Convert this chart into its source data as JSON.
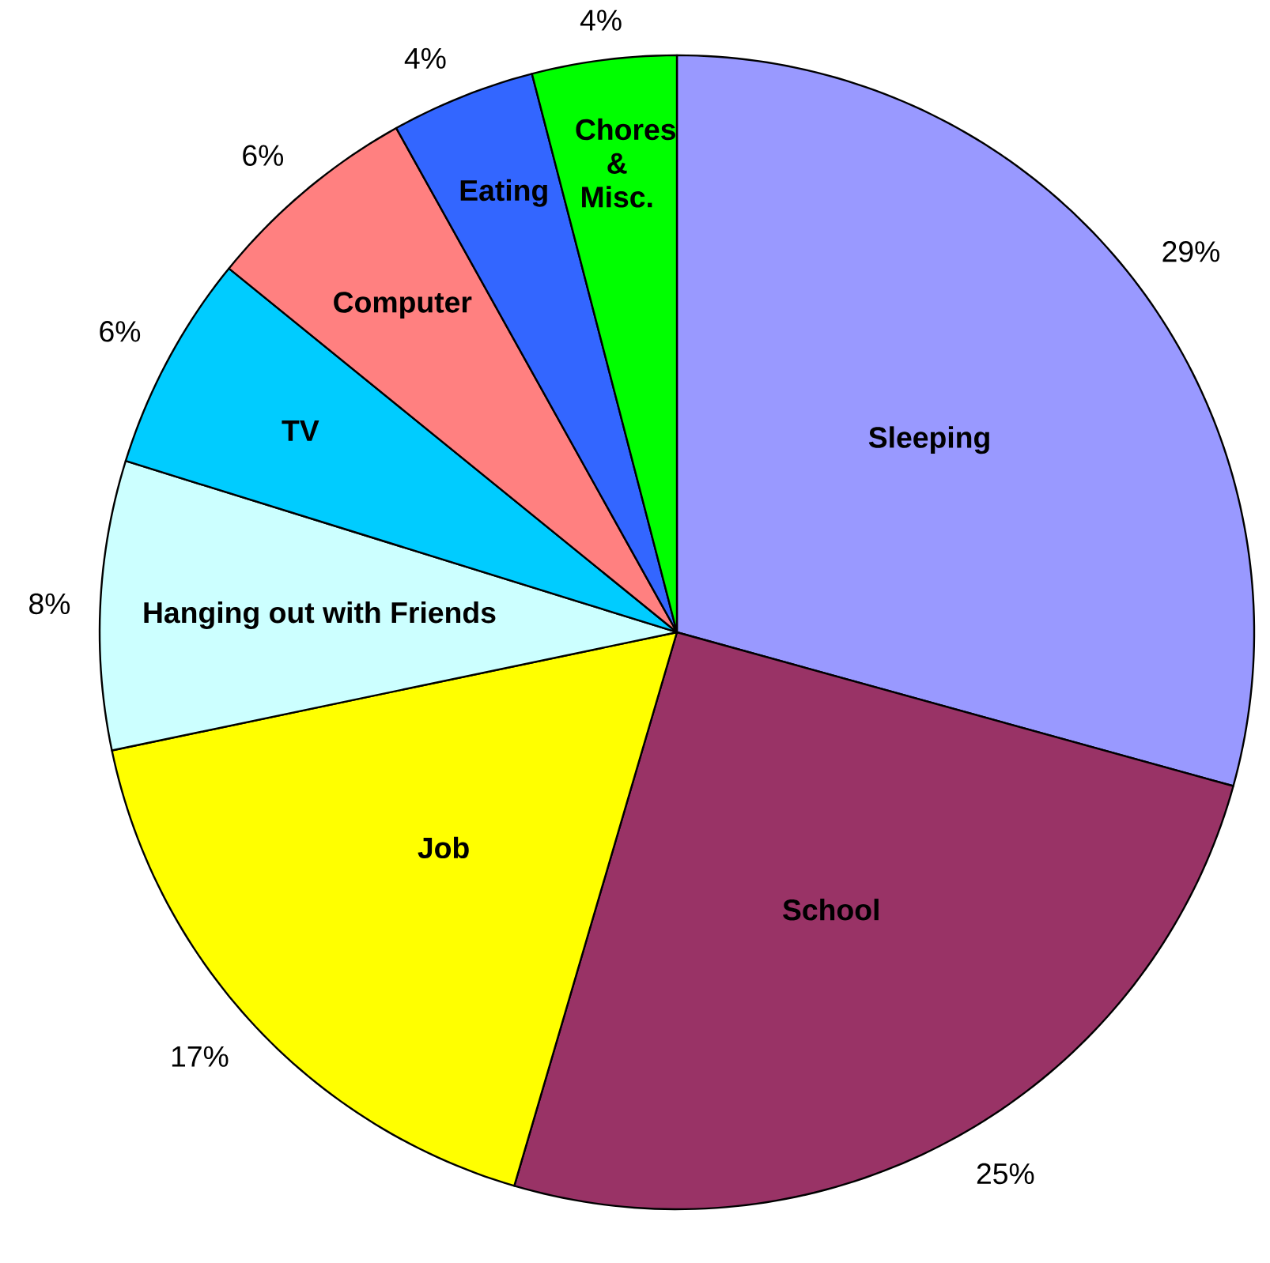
{
  "chart_data": {
    "type": "pie",
    "categories": [
      "Sleeping",
      "School",
      "Job",
      "Hanging out with Friends",
      "TV",
      "Computer",
      "Eating",
      "Chores & Misc."
    ],
    "values": [
      29,
      25,
      17,
      8,
      6,
      6,
      4,
      4
    ],
    "colors": [
      "#9999ff",
      "#993366",
      "#ffff00",
      "#ccffff",
      "#00ccff",
      "#ff8080",
      "#3366ff",
      "#00ff00"
    ],
    "value_labels": [
      "29%",
      "25%",
      "17%",
      "8%",
      "6%",
      "6%",
      "4%",
      "4%"
    ]
  }
}
